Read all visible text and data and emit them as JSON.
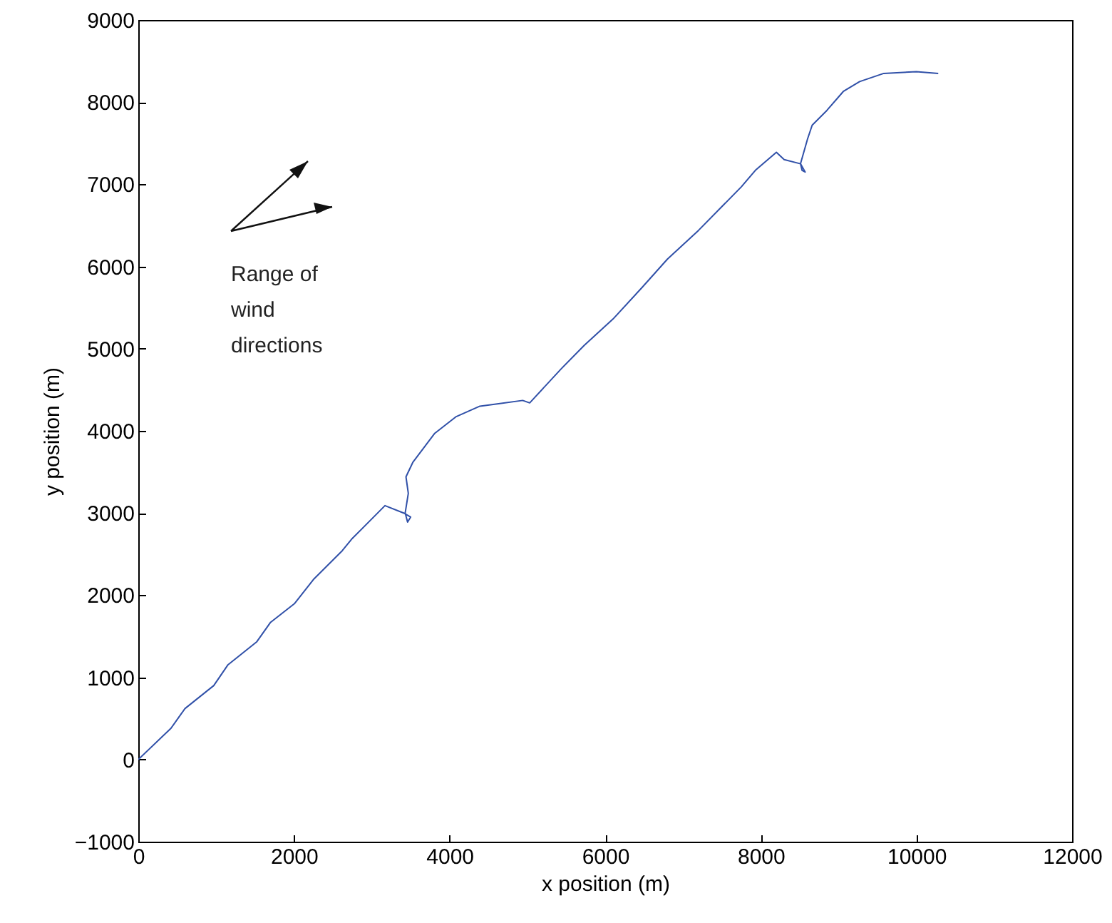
{
  "chart_data": {
    "type": "line",
    "xlabel": "x position (m)",
    "ylabel": "y position (m)",
    "annotations": [
      "Range of wind directions"
    ],
    "xlim": [
      0,
      12000
    ],
    "xticks": [
      0,
      2000,
      4000,
      6000,
      8000,
      10000,
      12000
    ],
    "ylim": [
      -1000,
      9000
    ],
    "yticks": [
      {
        "value": -1000,
        "label": "−1000"
      },
      0,
      1000,
      2000,
      3000,
      4000,
      5000,
      6000,
      7000,
      8000,
      9000
    ],
    "grid": false,
    "series": [
      {
        "color": "#3050a8",
        "x": [
          0,
          420,
          600,
          970,
          1150,
          1520,
          1700,
          2010,
          2250,
          2620,
          2740,
          3170,
          3410,
          3500,
          3460,
          3430,
          3470,
          3440,
          3530,
          3810,
          4080,
          4390,
          4630,
          4940,
          5030,
          5430,
          5730,
          6100,
          6470,
          6800,
          7200,
          7750,
          7930,
          8200,
          8300,
          8510,
          8570,
          8530,
          8510,
          8600,
          8660,
          8850,
          9060,
          9270,
          9580,
          10000,
          10280
        ],
        "values": [
          0,
          380,
          620,
          900,
          1150,
          1430,
          1670,
          1900,
          2190,
          2540,
          2680,
          3090,
          3000,
          2950,
          2890,
          3000,
          3240,
          3440,
          3620,
          3970,
          4170,
          4300,
          4330,
          4370,
          4340,
          4750,
          5040,
          5360,
          5740,
          6090,
          6440,
          6970,
          7170,
          7390,
          7300,
          7250,
          7150,
          7170,
          7250,
          7550,
          7720,
          7900,
          8130,
          8250,
          8350,
          8370,
          8350
        ]
      }
    ]
  }
}
